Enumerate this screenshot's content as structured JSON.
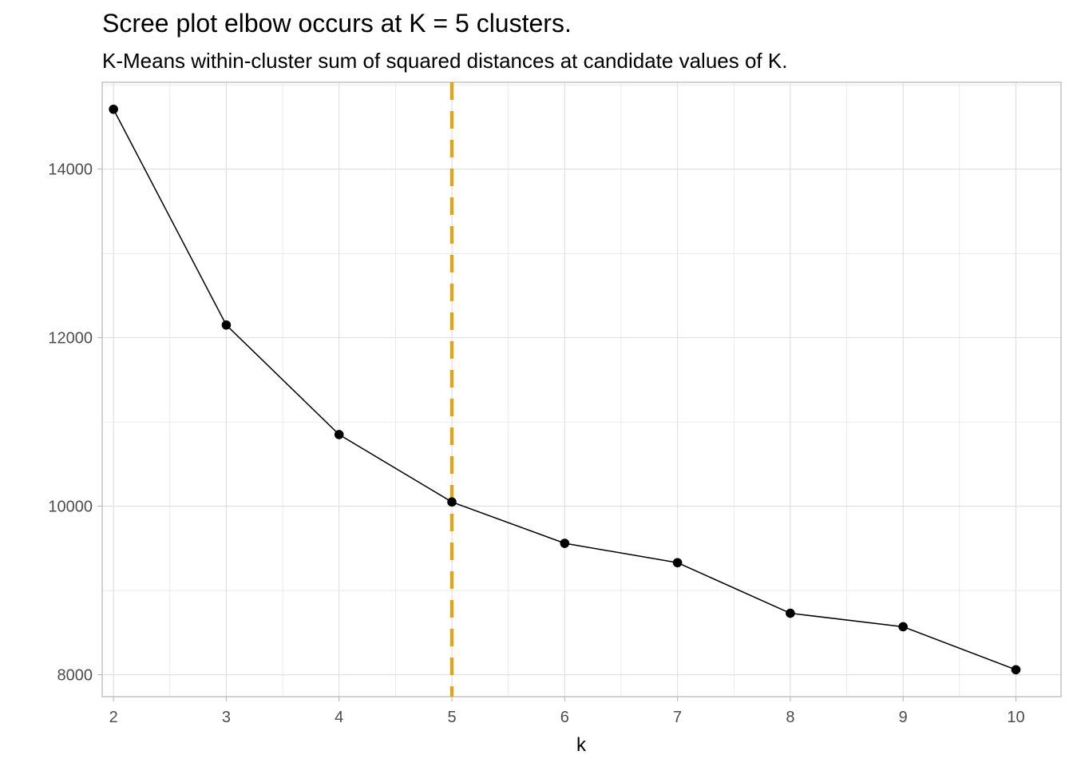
{
  "chart_data": {
    "type": "line",
    "title": "Scree plot elbow occurs at K = 5 clusters.",
    "subtitle": "K-Means within-cluster sum of squared distances at candidate values of K.",
    "xlabel": "k",
    "ylabel": "",
    "x": [
      2,
      3,
      4,
      5,
      6,
      7,
      8,
      9,
      10
    ],
    "series": [
      {
        "values": [
          14710,
          12150,
          10850,
          10050,
          9560,
          9330,
          8730,
          8570,
          8060
        ]
      }
    ],
    "xlim": [
      1.9,
      10.4
    ],
    "ylim": [
      7740,
      15030
    ],
    "x_ticks": [
      2,
      3,
      4,
      5,
      6,
      7,
      8,
      9,
      10
    ],
    "y_ticks": [
      8000,
      10000,
      12000,
      14000
    ],
    "reference_line": {
      "axis": "x",
      "value": 5,
      "style": "dashed",
      "color": "#DAA520"
    },
    "grid": true,
    "legend": "none",
    "colors": {
      "line": "#000000",
      "points": "#000000",
      "grid": "#dedede",
      "panel_border": "#b3b3b3",
      "reference": "#DAA520"
    }
  }
}
